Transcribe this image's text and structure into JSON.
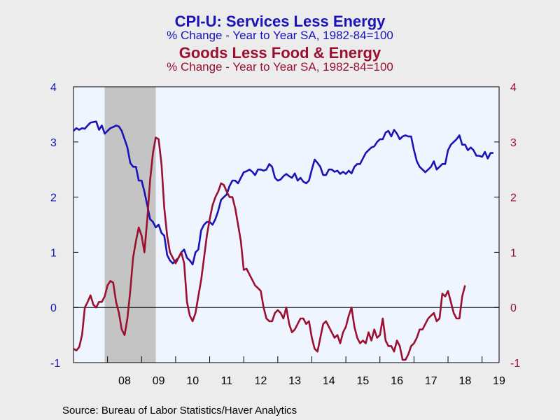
{
  "chart_data": {
    "type": "line",
    "titles": [
      {
        "title": "CPI-U: Services Less Energy",
        "subtitle": "% Change - Year to Year    SA, 1982-84=100",
        "color": "#1a14b8"
      },
      {
        "title": "Goods Less Food & Energy",
        "subtitle": "% Change - Year to Year    SA, 1982-84=100",
        "color": "#9b1030"
      }
    ],
    "x_tick_labels": [
      "08",
      "09",
      "10",
      "11",
      "12",
      "13",
      "14",
      "15",
      "16",
      "17",
      "18",
      "19"
    ],
    "x_tick_years": [
      2008,
      2009,
      2010,
      2011,
      2012,
      2013,
      2014,
      2015,
      2016,
      2017,
      2018,
      2019
    ],
    "xlim": [
      "2007-01",
      "2019-07"
    ],
    "ylim": [
      -1,
      4
    ],
    "y_ticks": [
      -1,
      0,
      1,
      2,
      3,
      4
    ],
    "left_axis_color": "#1a14b8",
    "right_axis_color": "#9b1030",
    "plot_background": "#eef5ff",
    "recession_shading": {
      "start": "2007-12",
      "end": "2009-06",
      "color": "#c4c4c4"
    },
    "zero_line": true,
    "series": [
      {
        "axis": "left",
        "color": "#1a14b8",
        "start": "2007-01",
        "values": [
          3.2,
          3.25,
          3.22,
          3.25,
          3.24,
          3.3,
          3.35,
          3.36,
          3.37,
          3.22,
          3.3,
          3.15,
          3.2,
          3.25,
          3.27,
          3.3,
          3.28,
          3.2,
          3.05,
          2.9,
          2.62,
          2.55,
          2.55,
          2.3,
          2.3,
          2.1,
          1.85,
          1.6,
          1.55,
          1.45,
          1.5,
          1.35,
          1.3,
          0.95,
          0.85,
          0.8,
          0.85,
          0.9,
          1.0,
          1.05,
          0.9,
          0.85,
          0.78,
          1.0,
          1.05,
          1.4,
          1.5,
          1.55,
          1.55,
          1.5,
          1.6,
          1.75,
          1.95,
          2.0,
          2.05,
          2.2,
          2.3,
          2.3,
          2.25,
          2.35,
          2.45,
          2.47,
          2.5,
          2.46,
          2.4,
          2.5,
          2.5,
          2.48,
          2.5,
          2.6,
          2.55,
          2.35,
          2.3,
          2.32,
          2.38,
          2.42,
          2.38,
          2.35,
          2.43,
          2.3,
          2.35,
          2.28,
          2.25,
          2.3,
          2.5,
          2.68,
          2.62,
          2.55,
          2.4,
          2.4,
          2.5,
          2.5,
          2.46,
          2.48,
          2.42,
          2.46,
          2.42,
          2.48,
          2.43,
          2.55,
          2.6,
          2.6,
          2.7,
          2.8,
          2.85,
          2.9,
          2.92,
          3.0,
          3.05,
          3.05,
          3.17,
          3.2,
          3.1,
          3.22,
          3.15,
          3.05,
          3.1,
          3.12,
          3.1,
          3.1,
          2.85,
          2.65,
          2.55,
          2.5,
          2.45,
          2.5,
          2.55,
          2.65,
          2.5,
          2.55,
          2.6,
          2.6,
          2.85,
          2.95,
          3.0,
          3.05,
          3.12,
          2.95,
          2.95,
          2.85,
          2.9,
          2.85,
          2.75,
          2.75,
          2.73,
          2.82,
          2.7,
          2.8,
          2.8
        ]
      },
      {
        "axis": "right",
        "color": "#9b1030",
        "start": "2007-01",
        "values": [
          -0.75,
          -0.78,
          -0.72,
          -0.5,
          0.0,
          0.1,
          0.22,
          0.05,
          0.0,
          0.1,
          0.1,
          0.2,
          0.4,
          0.48,
          0.45,
          0.1,
          -0.1,
          -0.4,
          -0.5,
          -0.2,
          0.3,
          0.9,
          1.2,
          1.45,
          1.3,
          1.0,
          1.6,
          2.3,
          2.8,
          3.08,
          3.05,
          2.6,
          1.8,
          1.3,
          1.0,
          0.9,
          0.8,
          0.9,
          1.0,
          0.8,
          0.1,
          -0.15,
          -0.25,
          -0.1,
          0.2,
          0.5,
          0.9,
          1.3,
          1.6,
          1.85,
          2.0,
          2.1,
          2.25,
          2.22,
          2.1,
          2.0,
          2.0,
          1.8,
          1.5,
          1.2,
          0.68,
          0.7,
          0.6,
          0.5,
          0.4,
          0.35,
          0.3,
          0.0,
          -0.2,
          -0.25,
          -0.25,
          -0.1,
          -0.05,
          -0.1,
          -0.2,
          0.0,
          -0.3,
          -0.45,
          -0.4,
          -0.3,
          -0.2,
          -0.2,
          -0.3,
          -0.25,
          -0.55,
          -0.75,
          -0.8,
          -0.55,
          -0.3,
          -0.25,
          -0.35,
          -0.45,
          -0.55,
          -0.5,
          -0.65,
          -0.45,
          -0.35,
          -0.15,
          0.0,
          -0.35,
          -0.55,
          -0.65,
          -0.6,
          -0.65,
          -0.45,
          -0.6,
          -0.4,
          -0.55,
          -0.5,
          -0.2,
          -0.6,
          -0.7,
          -0.7,
          -0.8,
          -0.6,
          -0.7,
          -0.95,
          -0.95,
          -0.85,
          -0.7,
          -0.65,
          -0.55,
          -0.4,
          -0.4,
          -0.3,
          -0.2,
          -0.15,
          -0.1,
          -0.25,
          -0.2,
          0.25,
          0.2,
          0.3,
          0.1,
          -0.1,
          -0.2,
          -0.2,
          0.2,
          0.4
        ]
      }
    ]
  },
  "source": "Source:  Bureau of Labor Statistics/Haver Analytics"
}
